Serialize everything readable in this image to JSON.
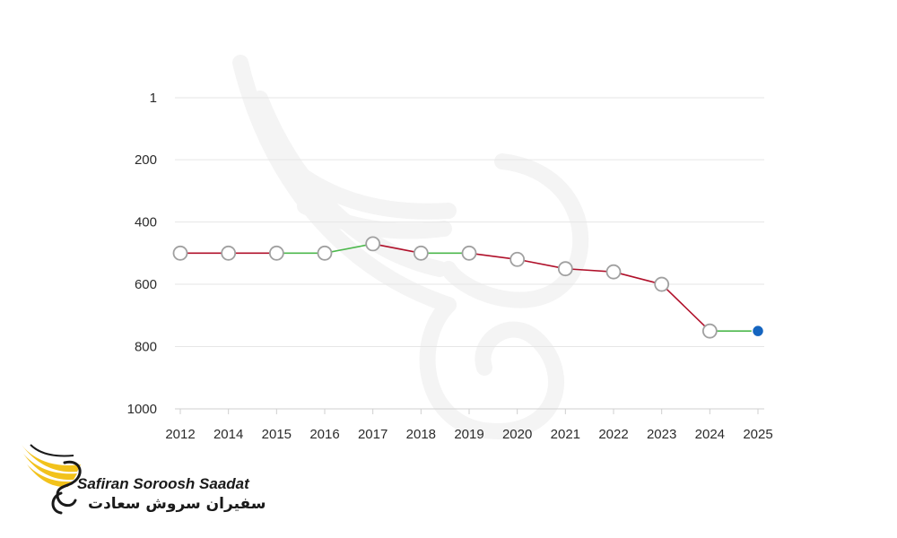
{
  "chart_data": {
    "type": "line",
    "title": "",
    "xlabel": "",
    "ylabel": "",
    "y_inverted": true,
    "ylim": [
      1,
      1000
    ],
    "y_ticks": [
      "1",
      "200",
      "400",
      "600",
      "800",
      "1000"
    ],
    "y_tick_values": [
      1,
      200,
      400,
      600,
      800,
      1000
    ],
    "categories": [
      "2012",
      "2014",
      "2015",
      "2016",
      "2017",
      "2018",
      "2019",
      "2020",
      "2021",
      "2022",
      "2023",
      "2024",
      "2025"
    ],
    "values": [
      500,
      500,
      500,
      500,
      470,
      500,
      500,
      520,
      550,
      560,
      600,
      750,
      750
    ],
    "segment_colors": [
      "#b0102a",
      "#b0102a",
      "#4cb84c",
      "#4cb84c",
      "#b0102a",
      "#4cb84c",
      "#b0102a",
      "#b0102a",
      "#b0102a",
      "#b0102a",
      "#b0102a",
      "#4cb84c"
    ],
    "grid": true,
    "legend": "none"
  },
  "colors": {
    "decline": "#b0102a",
    "improve": "#4cb84c",
    "current_point": "#1565c0",
    "marker_fill": "#ffffff",
    "marker_stroke": "#a0a0a0",
    "grid": "#e6e6e6",
    "logo_yellow": "#f2c21b"
  },
  "watermark_icon": "bird-wing-watermark-icon",
  "logo": {
    "icon": "bird-wing-logo-icon",
    "name_en": "Safiran Soroosh Saadat",
    "name_fa": "سفیران سروش سعادت"
  }
}
